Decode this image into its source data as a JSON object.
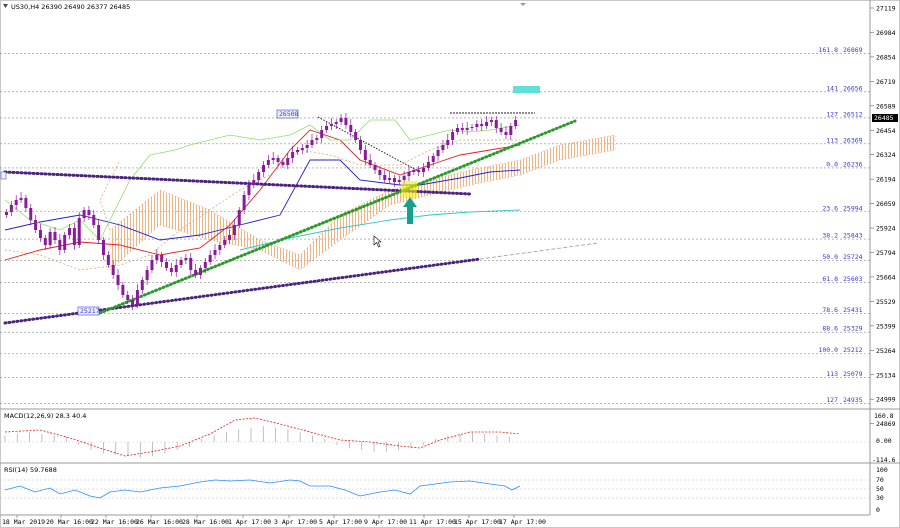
{
  "header": {
    "symbol_line": "US30,H4  26390 26490 26377 26485"
  },
  "colors": {
    "candle": "#8a1a9b",
    "ema_red": "#e02020",
    "ema_blue": "#2020d0",
    "ema_cyan": "#30c8c8",
    "tenkan": "#8ee06a",
    "kijun": "#d8a060",
    "cloud": "#f0b482",
    "trend_green": "#2a9a2a",
    "trend_purple": "#4a2480",
    "fib_line": "#8a8a8a",
    "fib_text": "#3a3acc",
    "arrow": "#19a08c",
    "highlight": "#f0f000",
    "target_box": "#5fe0d8",
    "macd_line": "#e02020",
    "macd_hist": "#b0b0b0",
    "rsi_line": "#2a8cff"
  },
  "price_axis": {
    "labels": [
      "27119",
      "26984",
      "26854",
      "26719",
      "26589",
      "26454",
      "26324",
      "26194",
      "26059",
      "25924",
      "25794",
      "25664",
      "25529",
      "25399",
      "25264",
      "25134",
      "24999",
      "24869"
    ],
    "current": "26485"
  },
  "fib_levels": [
    {
      "ratio": "161.8",
      "price": "26869"
    },
    {
      "ratio": "141",
      "price": "26656"
    },
    {
      "ratio": "127",
      "price": "26512"
    },
    {
      "ratio": "113",
      "price": "26369"
    },
    {
      "ratio": "0.0",
      "price": "26236"
    },
    {
      "ratio": "23.6",
      "price": "25994"
    },
    {
      "ratio": "38.2",
      "price": "25843"
    },
    {
      "ratio": "50.0",
      "price": "25724"
    },
    {
      "ratio": "61.8",
      "price": "25603"
    },
    {
      "ratio": "78.6",
      "price": "25431"
    },
    {
      "ratio": "88.6",
      "price": "25329"
    },
    {
      "ratio": "100.0",
      "price": "25212"
    },
    {
      "ratio": "113",
      "price": "25079"
    },
    {
      "ratio": "127",
      "price": "24935"
    }
  ],
  "chart_labels": {
    "high_tag": "26508",
    "low_tag": "25217"
  },
  "macd": {
    "label": "MACD(12,26,9) 28.3 40.4",
    "axis": [
      "160.8",
      "0.00",
      "-114.6"
    ],
    "current": "0.00"
  },
  "rsi": {
    "label": "RSI(14) 59.7688",
    "axis": [
      "100",
      "70",
      "50",
      "30",
      "0"
    ]
  },
  "time_axis": [
    "18 Mar 2019",
    "20 Mar 16:00",
    "22 Mar 16:00",
    "26 Mar 16:00",
    "28 Mar 16:00",
    "1 Apr 17:00",
    "3 Apr 17:00",
    "5 Apr 17:00",
    "9 Apr 17:00",
    "11 Apr 17:00",
    "15 Apr 17:00",
    "17 Apr 17:00"
  ]
}
